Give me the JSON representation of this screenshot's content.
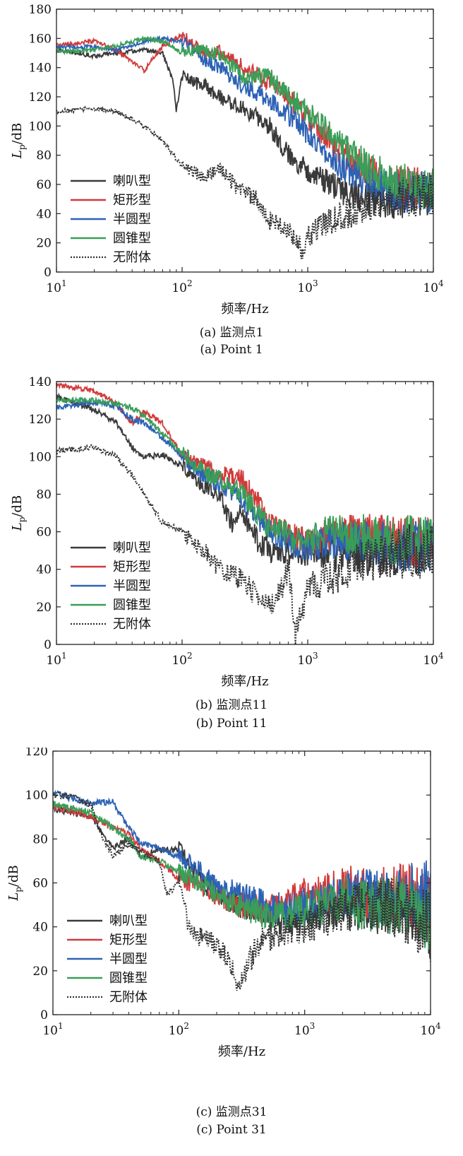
{
  "chart_data": [
    {
      "type": "line",
      "xscale": "log",
      "xlim": [
        10,
        10000
      ],
      "ylim": [
        0,
        180
      ],
      "yticks": [
        0,
        20,
        40,
        60,
        80,
        100,
        120,
        140,
        160,
        180
      ],
      "xticks": [
        "10^1",
        "10^2",
        "10^3",
        "10^4"
      ],
      "xlabel": "频率/Hz",
      "ylabel_main": "L",
      "ylabel_sub": "p",
      "ylabel_rest": "/dB",
      "legend_position": "bottom-left",
      "caption_cn": "(a) 监测点1",
      "caption_en": "(a) Point 1",
      "series": [
        {
          "name": "喇叭型",
          "color": "#3a3a3a",
          "dash": "solid",
          "x": [
            10,
            20,
            30,
            50,
            70,
            85,
            90,
            100,
            120,
            150,
            200,
            300,
            500,
            700,
            1000,
            1500,
            2000,
            3000,
            5000,
            7000,
            10000
          ],
          "y": [
            152,
            148,
            150,
            152,
            150,
            130,
            110,
            135,
            130,
            128,
            120,
            112,
            100,
            80,
            70,
            60,
            55,
            50,
            50,
            52,
            55
          ]
        },
        {
          "name": "矩形型",
          "color": "#d23a3a",
          "dash": "solid",
          "x": [
            10,
            20,
            30,
            50,
            70,
            100,
            150,
            200,
            300,
            500,
            700,
            1000,
            1500,
            2000,
            3000,
            5000,
            7000,
            10000
          ],
          "y": [
            155,
            158,
            152,
            138,
            155,
            162,
            150,
            152,
            140,
            130,
            120,
            105,
            90,
            80,
            70,
            60,
            58,
            55
          ]
        },
        {
          "name": "半圆型",
          "color": "#2d62b5",
          "dash": "solid",
          "x": [
            10,
            20,
            30,
            50,
            70,
            100,
            150,
            200,
            300,
            500,
            700,
            1000,
            1500,
            2000,
            3000,
            5000,
            7000,
            10000
          ],
          "y": [
            154,
            154,
            152,
            158,
            160,
            158,
            145,
            140,
            128,
            118,
            108,
            95,
            80,
            70,
            60,
            55,
            55,
            55
          ]
        },
        {
          "name": "圆锥型",
          "color": "#3a9e58",
          "dash": "solid",
          "x": [
            10,
            20,
            30,
            50,
            70,
            100,
            150,
            200,
            300,
            500,
            700,
            1000,
            1500,
            2000,
            3000,
            5000,
            7000,
            10000
          ],
          "y": [
            151,
            152,
            155,
            160,
            158,
            150,
            152,
            148,
            135,
            133,
            120,
            110,
            95,
            85,
            72,
            62,
            58,
            55
          ]
        },
        {
          "name": "无附体",
          "color": "#333333",
          "dash": "dot",
          "x": [
            10,
            20,
            30,
            50,
            70,
            100,
            150,
            200,
            300,
            400,
            500,
            700,
            900,
            1000,
            1500,
            2000,
            3000,
            5000,
            7000,
            10000
          ],
          "y": [
            110,
            112,
            110,
            100,
            90,
            72,
            65,
            70,
            55,
            50,
            35,
            28,
            15,
            25,
            35,
            40,
            45,
            50,
            52,
            55
          ]
        }
      ]
    },
    {
      "type": "line",
      "xscale": "log",
      "xlim": [
        10,
        10000
      ],
      "ylim": [
        0,
        140
      ],
      "yticks": [
        0,
        20,
        40,
        60,
        80,
        100,
        120,
        140
      ],
      "xticks": [
        "10^1",
        "10^2",
        "10^3",
        "10^4"
      ],
      "xlabel": "频率/Hz",
      "ylabel_main": "L",
      "ylabel_sub": "p",
      "ylabel_rest": "/dB",
      "legend_position": "bottom-left",
      "caption_cn": "(b) 监测点11",
      "caption_en": "(b) Point 11",
      "series": [
        {
          "name": "喇叭型",
          "color": "#3a3a3a",
          "dash": "solid",
          "x": [
            10,
            20,
            30,
            40,
            50,
            70,
            100,
            120,
            150,
            200,
            250,
            300,
            400,
            500,
            700,
            1000,
            1500,
            2000,
            3000,
            5000,
            7000,
            10000
          ],
          "y": [
            132,
            125,
            118,
            105,
            100,
            101,
            95,
            90,
            85,
            78,
            65,
            70,
            55,
            50,
            48,
            50,
            48,
            50,
            48,
            50,
            52,
            50
          ]
        },
        {
          "name": "矩形型",
          "color": "#d23a3a",
          "dash": "solid",
          "x": [
            10,
            20,
            30,
            40,
            50,
            70,
            100,
            150,
            200,
            300,
            500,
            700,
            1000,
            1500,
            2000,
            3000,
            5000,
            7000,
            10000
          ],
          "y": [
            138,
            135,
            128,
            118,
            124,
            118,
            100,
            95,
            90,
            88,
            65,
            58,
            55,
            58,
            60,
            58,
            55,
            55,
            55
          ]
        },
        {
          "name": "半圆型",
          "color": "#2d62b5",
          "dash": "solid",
          "x": [
            10,
            20,
            30,
            40,
            50,
            70,
            100,
            150,
            200,
            300,
            500,
            700,
            1000,
            1500,
            2000,
            3000,
            5000,
            7000,
            10000
          ],
          "y": [
            126,
            129,
            127,
            120,
            118,
            110,
            100,
            90,
            85,
            78,
            60,
            55,
            52,
            55,
            55,
            55,
            52,
            52,
            52
          ]
        },
        {
          "name": "圆锥型",
          "color": "#3a9e58",
          "dash": "solid",
          "x": [
            10,
            20,
            30,
            40,
            50,
            70,
            100,
            150,
            200,
            300,
            500,
            700,
            1000,
            1500,
            2000,
            3000,
            5000,
            7000,
            10000
          ],
          "y": [
            130,
            130,
            128,
            126,
            122,
            112,
            102,
            92,
            88,
            80,
            62,
            58,
            55,
            60,
            58,
            58,
            55,
            55,
            55
          ]
        },
        {
          "name": "无附体",
          "color": "#333333",
          "dash": "dot",
          "x": [
            10,
            20,
            30,
            40,
            50,
            70,
            100,
            150,
            200,
            300,
            400,
            500,
            600,
            700,
            800,
            1000,
            1500,
            2000,
            3000,
            5000,
            7000,
            10000
          ],
          "y": [
            103,
            105,
            100,
            90,
            80,
            65,
            60,
            50,
            40,
            35,
            25,
            20,
            28,
            40,
            5,
            30,
            35,
            40,
            45,
            48,
            50,
            50
          ]
        }
      ]
    },
    {
      "type": "line",
      "xscale": "log",
      "xlim": [
        10,
        10000
      ],
      "ylim": [
        0,
        120
      ],
      "yticks": [
        0,
        20,
        40,
        60,
        80,
        100,
        120
      ],
      "xticks": [
        "10^1",
        "10^2",
        "10^3",
        "10^4"
      ],
      "xlabel": "频率/Hz",
      "ylabel_main": "L",
      "ylabel_sub": "p",
      "ylabel_rest": "/dB",
      "legend_position": "bottom-left",
      "caption_cn": "(c) 监测点31",
      "caption_en": "(c) Point 31",
      "series": [
        {
          "name": "喇叭型",
          "color": "#3a3a3a",
          "dash": "solid",
          "x": [
            10,
            20,
            30,
            40,
            50,
            70,
            100,
            150,
            200,
            300,
            500,
            700,
            1000,
            1500,
            2000,
            3000,
            5000,
            7000,
            10000
          ],
          "y": [
            94,
            90,
            76,
            80,
            72,
            75,
            75,
            60,
            55,
            50,
            45,
            42,
            45,
            48,
            50,
            48,
            50,
            45,
            40
          ]
        },
        {
          "name": "矩形型",
          "color": "#d23a3a",
          "dash": "solid",
          "x": [
            10,
            20,
            30,
            40,
            50,
            70,
            100,
            150,
            200,
            300,
            500,
            700,
            1000,
            1500,
            2000,
            3000,
            5000,
            7000,
            10000
          ],
          "y": [
            95,
            90,
            85,
            82,
            75,
            70,
            62,
            58,
            55,
            50,
            48,
            50,
            55,
            55,
            58,
            55,
            55,
            55,
            50
          ]
        },
        {
          "name": "半圆型",
          "color": "#2d62b5",
          "dash": "solid",
          "x": [
            10,
            20,
            30,
            40,
            50,
            70,
            100,
            150,
            200,
            300,
            500,
            700,
            1000,
            1500,
            2000,
            3000,
            5000,
            7000,
            10000
          ],
          "y": [
            101,
            96,
            97,
            85,
            78,
            76,
            72,
            65,
            58,
            55,
            50,
            48,
            50,
            52,
            55,
            55,
            52,
            55,
            55
          ]
        },
        {
          "name": "圆锥型",
          "color": "#3a9e58",
          "dash": "solid",
          "x": [
            10,
            20,
            30,
            40,
            50,
            70,
            100,
            150,
            200,
            300,
            500,
            700,
            1000,
            1500,
            2000,
            3000,
            5000,
            7000,
            10000
          ],
          "y": [
            96,
            92,
            85,
            80,
            72,
            70,
            65,
            60,
            55,
            50,
            45,
            45,
            48,
            50,
            52,
            50,
            50,
            48,
            45
          ]
        },
        {
          "name": "无附体",
          "color": "#333333",
          "dash": "dot",
          "x": [
            10,
            15,
            20,
            25,
            30,
            40,
            50,
            70,
            80,
            100,
            120,
            150,
            200,
            250,
            300,
            400,
            500,
            700,
            1000,
            1500,
            2000,
            3000,
            5000,
            7000,
            10000
          ],
          "y": [
            100,
            99,
            95,
            80,
            72,
            78,
            75,
            70,
            55,
            60,
            40,
            35,
            32,
            25,
            12,
            30,
            35,
            38,
            40,
            45,
            48,
            50,
            50,
            45,
            40
          ]
        }
      ]
    }
  ]
}
